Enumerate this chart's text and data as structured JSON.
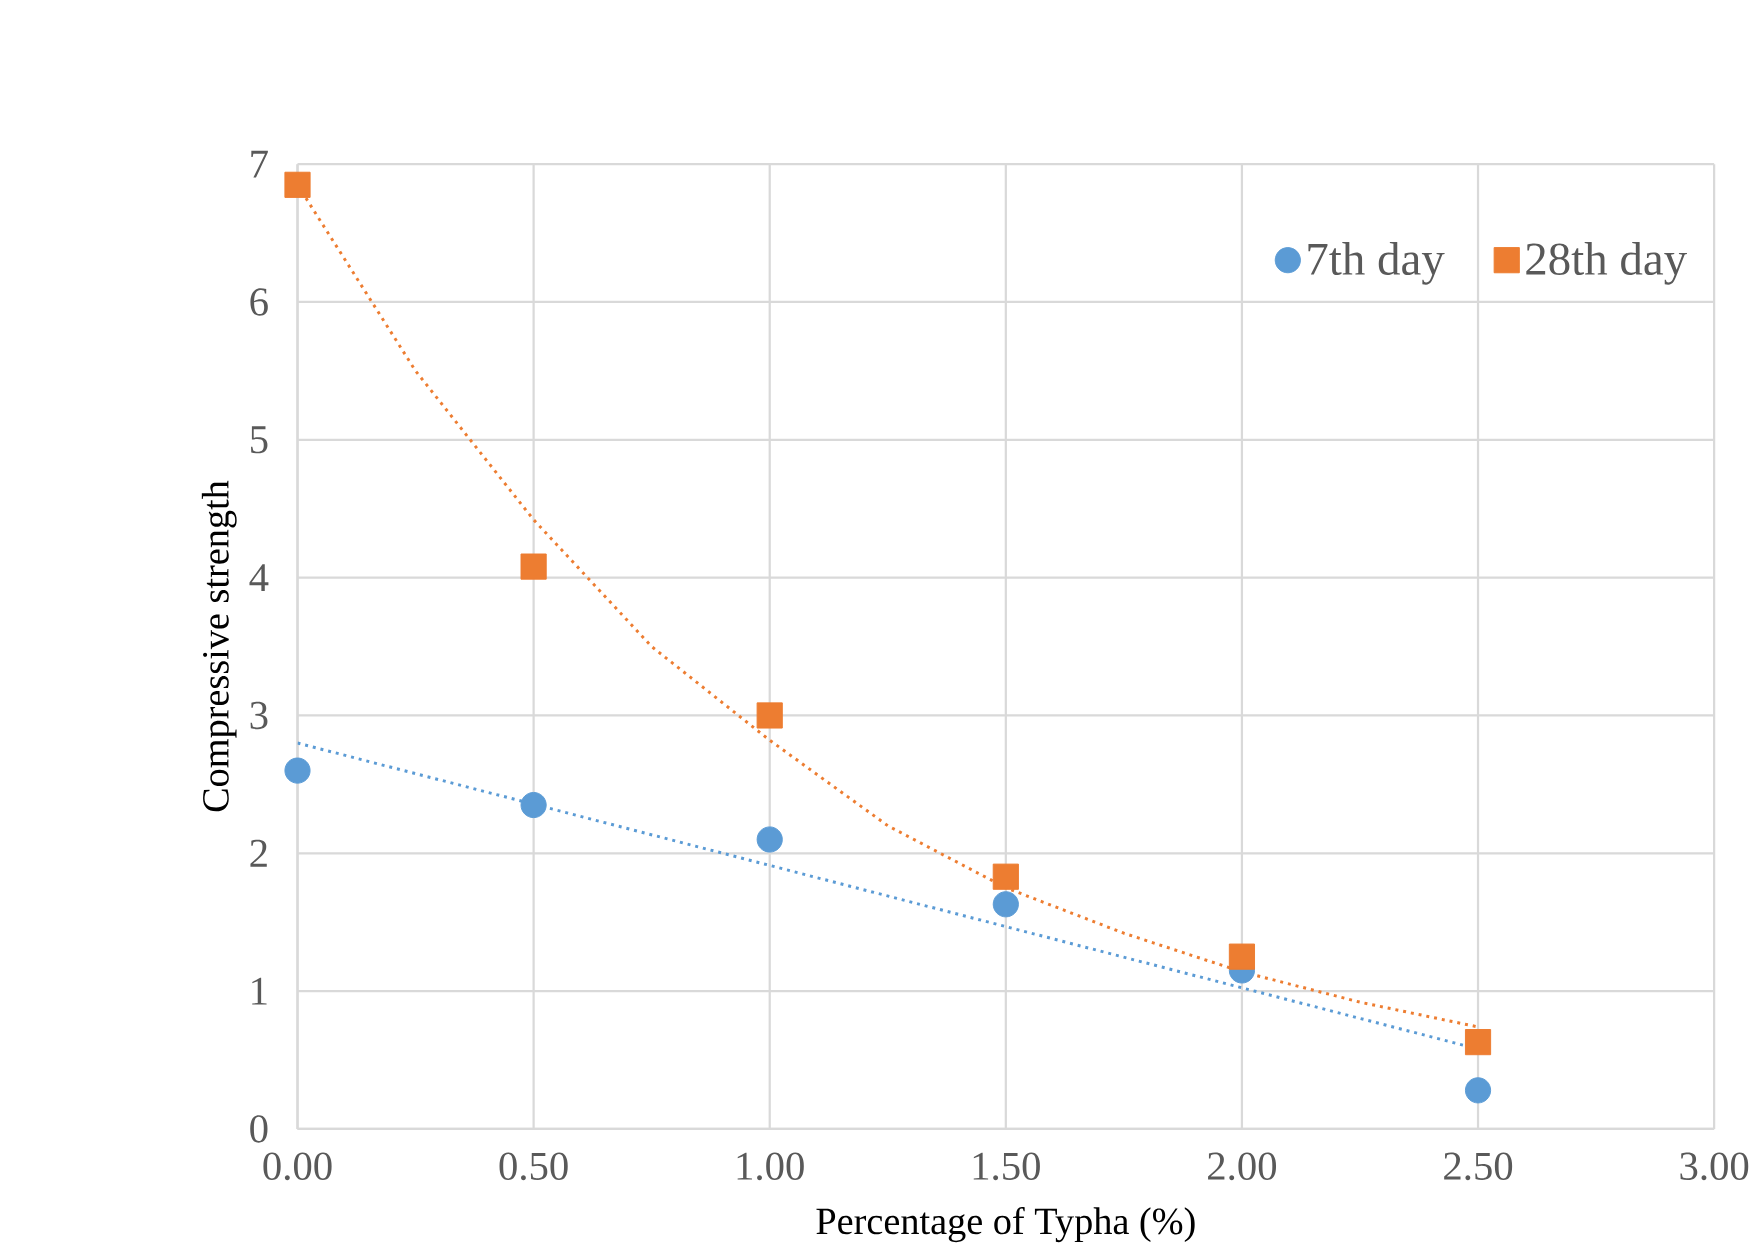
{
  "chart_data": {
    "type": "scatter",
    "xlabel": "Percentage of Typha (%)",
    "ylabel": "Compressive strength",
    "xlim": [
      0,
      3
    ],
    "ylim": [
      0,
      7
    ],
    "xticks": [
      {
        "value": 0,
        "label": "0.00"
      },
      {
        "value": 0.5,
        "label": "0.50"
      },
      {
        "value": 1,
        "label": "1.00"
      },
      {
        "value": 1.5,
        "label": "1.50"
      },
      {
        "value": 2,
        "label": "2.00"
      },
      {
        "value": 2.5,
        "label": "2.50"
      },
      {
        "value": 3,
        "label": "3.00"
      }
    ],
    "yticks": [
      0,
      1,
      2,
      3,
      4,
      5,
      6,
      7
    ],
    "grid": true,
    "legend": "top right",
    "series": [
      {
        "name": "7th day",
        "color": "#5b9bd5",
        "marker": "circle",
        "x": [
          0,
          0.5,
          1,
          1.5,
          2,
          2.5
        ],
        "values": [
          2.6,
          2.35,
          2.1,
          1.63,
          1.15,
          0.28
        ]
      },
      {
        "name": "28th day",
        "color": "#ed7d31",
        "marker": "square",
        "x": [
          0,
          0.5,
          1,
          1.5,
          2,
          2.5
        ],
        "values": [
          6.85,
          4.08,
          3.0,
          1.83,
          1.25,
          0.63
        ]
      },
      {
        "type": "line",
        "line_style": "dotted",
        "color": "#5b9bd5",
        "x": [
          0,
          2.5
        ],
        "values": [
          2.8,
          0.58
        ]
      },
      {
        "type": "line",
        "line_style": "dotted",
        "color": "#ed7d31",
        "x": [
          0,
          0.25,
          0.5,
          0.75,
          1,
          1.25,
          1.5,
          1.75,
          2,
          2.25,
          2.5
        ],
        "values": [
          6.85,
          5.5,
          4.42,
          3.5,
          2.82,
          2.2,
          1.75,
          1.42,
          1.14,
          0.92,
          0.74
        ]
      }
    ]
  }
}
